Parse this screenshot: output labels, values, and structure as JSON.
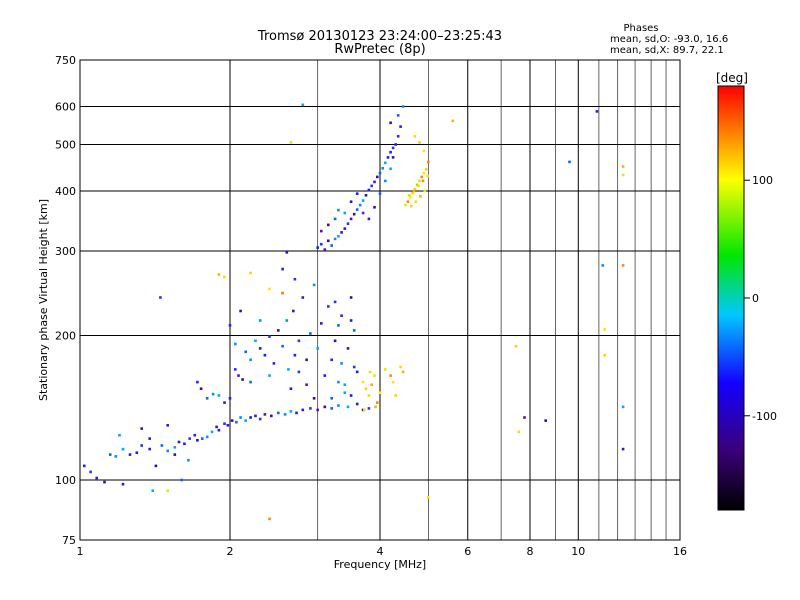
{
  "chart_data": {
    "type": "scatter",
    "title": "Tromsø 20130123 23:24:00–23:25:43",
    "subtitle": "RwPretec (8p)",
    "xlabel": "Frequency [MHz]",
    "ylabel": "Stationary phase Virtual Height [km]",
    "x_scale": "log",
    "y_scale": "log",
    "xlim": [
      1,
      16
    ],
    "ylim": [
      75,
      750
    ],
    "x_ticks": [
      1,
      2,
      4,
      6,
      8,
      10,
      16
    ],
    "y_ticks": [
      75,
      100,
      200,
      300,
      400,
      500,
      600,
      750
    ],
    "grid": true,
    "phase_info": {
      "heading": "Phases",
      "line_o": "mean, sd,O: -93.0, 16.6",
      "line_x": "mean, sd,X:  89.7, 22.1"
    },
    "colorbar": {
      "label": "[deg]",
      "range": [
        -180,
        180
      ],
      "ticks": [
        -100,
        0,
        100
      ],
      "colors": [
        "#000000",
        "#3a0078",
        "#1400ff",
        "#00c8ff",
        "#00e600",
        "#ffff00",
        "#ff0000"
      ]
    },
    "series": [
      {
        "color_key": "O-mode (cool)",
        "points": [
          [
            1.02,
            107
          ],
          [
            1.05,
            104
          ],
          [
            1.08,
            101
          ],
          [
            1.12,
            99
          ],
          [
            1.15,
            113
          ],
          [
            1.18,
            112
          ],
          [
            1.22,
            116
          ],
          [
            1.26,
            113
          ],
          [
            1.3,
            114
          ],
          [
            1.33,
            118
          ],
          [
            1.38,
            116
          ],
          [
            1.42,
            107
          ],
          [
            1.46,
            118
          ],
          [
            1.5,
            115
          ],
          [
            1.55,
            117
          ],
          [
            1.58,
            120
          ],
          [
            1.62,
            119
          ],
          [
            1.66,
            122
          ],
          [
            1.7,
            124
          ],
          [
            1.72,
            121
          ],
          [
            1.76,
            122
          ],
          [
            1.8,
            123
          ],
          [
            1.84,
            126
          ],
          [
            1.88,
            129
          ],
          [
            1.9,
            127
          ],
          [
            1.95,
            131
          ],
          [
            1.98,
            130
          ],
          [
            2.02,
            133
          ],
          [
            2.06,
            132
          ],
          [
            2.1,
            135
          ],
          [
            2.15,
            133
          ],
          [
            2.2,
            135
          ],
          [
            2.25,
            136
          ],
          [
            2.3,
            134
          ],
          [
            2.35,
            137
          ],
          [
            2.42,
            136
          ],
          [
            2.5,
            138
          ],
          [
            2.58,
            137
          ],
          [
            2.65,
            139
          ],
          [
            2.72,
            138
          ],
          [
            2.8,
            140
          ],
          [
            2.9,
            141
          ],
          [
            3.0,
            140
          ],
          [
            3.1,
            142
          ],
          [
            3.2,
            141
          ],
          [
            3.3,
            143
          ],
          [
            3.45,
            142
          ],
          [
            3.6,
            144
          ],
          [
            3.7,
            140
          ],
          [
            3.8,
            141
          ],
          [
            1.72,
            160
          ],
          [
            1.75,
            155
          ],
          [
            1.8,
            148
          ],
          [
            1.85,
            151
          ],
          [
            1.9,
            150
          ],
          [
            1.95,
            145
          ],
          [
            2.0,
            148
          ],
          [
            2.05,
            170
          ],
          [
            2.08,
            165
          ],
          [
            2.12,
            162
          ],
          [
            2.15,
            185
          ],
          [
            2.2,
            178
          ],
          [
            2.25,
            195
          ],
          [
            2.3,
            188
          ],
          [
            2.35,
            182
          ],
          [
            2.4,
            199
          ],
          [
            2.45,
            175
          ],
          [
            2.5,
            205
          ],
          [
            2.55,
            190
          ],
          [
            2.6,
            215
          ],
          [
            2.62,
            170
          ],
          [
            2.68,
            225
          ],
          [
            2.7,
            182
          ],
          [
            2.75,
            195
          ],
          [
            2.8,
            240
          ],
          [
            2.85,
            178
          ],
          [
            2.9,
            202
          ],
          [
            2.95,
            255
          ],
          [
            3.0,
            188
          ],
          [
            3.05,
            212
          ],
          [
            3.1,
            165
          ],
          [
            3.15,
            230
          ],
          [
            3.2,
            178
          ],
          [
            3.25,
            195
          ],
          [
            3.3,
            210
          ],
          [
            3.35,
            175
          ],
          [
            3.4,
            158
          ],
          [
            3.45,
            188
          ],
          [
            3.5,
            215
          ],
          [
            3.55,
            172
          ],
          [
            2.0,
            210
          ],
          [
            2.1,
            225
          ],
          [
            2.2,
            160
          ],
          [
            2.3,
            215
          ],
          [
            2.4,
            165
          ],
          [
            2.55,
            245
          ],
          [
            2.65,
            155
          ],
          [
            2.75,
            168
          ],
          [
            2.85,
            158
          ],
          [
            2.95,
            148
          ],
          [
            3.2,
            148
          ],
          [
            3.3,
            160
          ],
          [
            3.4,
            152
          ],
          [
            3.5,
            150
          ],
          [
            3.6,
            168
          ],
          [
            3.25,
            235
          ],
          [
            3.35,
            220
          ],
          [
            3.5,
            240
          ],
          [
            3.55,
            205
          ],
          [
            2.05,
            192
          ],
          [
            1.2,
            124
          ],
          [
            1.33,
            128
          ],
          [
            1.38,
            122
          ],
          [
            1.45,
            240
          ],
          [
            1.5,
            130
          ],
          [
            1.55,
            113
          ],
          [
            1.6,
            100
          ],
          [
            1.65,
            110
          ],
          [
            1.4,
            95
          ],
          [
            1.22,
            98
          ],
          [
            3.0,
            305
          ],
          [
            3.05,
            310
          ],
          [
            3.1,
            302
          ],
          [
            3.15,
            315
          ],
          [
            3.2,
            308
          ],
          [
            3.25,
            318
          ],
          [
            3.3,
            322
          ],
          [
            3.35,
            328
          ],
          [
            3.4,
            334
          ],
          [
            3.45,
            342
          ],
          [
            3.5,
            350
          ],
          [
            3.55,
            358
          ],
          [
            3.6,
            366
          ],
          [
            3.65,
            374
          ],
          [
            3.7,
            382
          ],
          [
            3.75,
            392
          ],
          [
            3.8,
            402
          ],
          [
            3.85,
            410
          ],
          [
            3.9,
            418
          ],
          [
            3.95,
            428
          ],
          [
            4.0,
            436
          ],
          [
            4.05,
            446
          ],
          [
            4.1,
            458
          ],
          [
            4.15,
            470
          ],
          [
            4.2,
            482
          ],
          [
            4.25,
            492
          ],
          [
            3.05,
            330
          ],
          [
            3.15,
            340
          ],
          [
            3.25,
            350
          ],
          [
            3.3,
            365
          ],
          [
            3.4,
            360
          ],
          [
            3.5,
            380
          ],
          [
            3.6,
            395
          ],
          [
            3.7,
            360
          ],
          [
            3.8,
            350
          ],
          [
            3.9,
            370
          ],
          [
            4.0,
            395
          ],
          [
            4.1,
            420
          ],
          [
            4.2,
            445
          ],
          [
            4.25,
            470
          ],
          [
            4.3,
            500
          ],
          [
            4.35,
            520
          ],
          [
            4.4,
            545
          ],
          [
            4.2,
            555
          ],
          [
            4.35,
            575
          ],
          [
            4.45,
            600
          ],
          [
            2.8,
            605
          ],
          [
            2.6,
            298
          ],
          [
            2.55,
            275
          ],
          [
            2.7,
            262
          ],
          [
            7.8,
            135
          ],
          [
            8.6,
            133
          ],
          [
            9.6,
            460
          ],
          [
            11.2,
            280
          ],
          [
            12.3,
            142
          ],
          [
            12.3,
            116
          ],
          [
            10.9,
            586
          ]
        ]
      },
      {
        "color_key": "X-mode (warm)",
        "points": [
          [
            3.7,
            160
          ],
          [
            3.75,
            155
          ],
          [
            3.8,
            150
          ],
          [
            3.85,
            158
          ],
          [
            3.9,
            165
          ],
          [
            3.95,
            145
          ],
          [
            4.0,
            152
          ],
          [
            3.72,
            140
          ],
          [
            3.82,
            168
          ],
          [
            3.92,
            142
          ],
          [
            4.1,
            170
          ],
          [
            4.2,
            165
          ],
          [
            4.25,
            160
          ],
          [
            4.3,
            150
          ],
          [
            4.4,
            172
          ],
          [
            4.45,
            168
          ],
          [
            4.5,
            374
          ],
          [
            4.55,
            380
          ],
          [
            4.6,
            388
          ],
          [
            4.65,
            396
          ],
          [
            4.7,
            404
          ],
          [
            4.75,
            412
          ],
          [
            4.8,
            420
          ],
          [
            4.85,
            428
          ],
          [
            4.9,
            436
          ],
          [
            4.95,
            444
          ],
          [
            4.58,
            392
          ],
          [
            4.68,
            400
          ],
          [
            4.78,
            410
          ],
          [
            4.88,
            420
          ],
          [
            4.98,
            430
          ],
          [
            4.62,
            372
          ],
          [
            4.72,
            380
          ],
          [
            4.82,
            390
          ],
          [
            4.92,
            400
          ],
          [
            5.0,
            460
          ],
          [
            4.9,
            485
          ],
          [
            4.8,
            505
          ],
          [
            4.7,
            520
          ],
          [
            5.6,
            560
          ],
          [
            2.65,
            505
          ],
          [
            2.55,
            245
          ],
          [
            2.4,
            250
          ],
          [
            2.2,
            270
          ],
          [
            1.95,
            265
          ],
          [
            1.9,
            268
          ],
          [
            1.5,
            95
          ],
          [
            2.4,
            83
          ],
          [
            5.0,
            92
          ],
          [
            7.5,
            190
          ],
          [
            7.6,
            126
          ],
          [
            12.3,
            450
          ],
          [
            12.3,
            432
          ],
          [
            12.3,
            280
          ],
          [
            11.3,
            206
          ],
          [
            11.3,
            182
          ]
        ]
      }
    ]
  }
}
